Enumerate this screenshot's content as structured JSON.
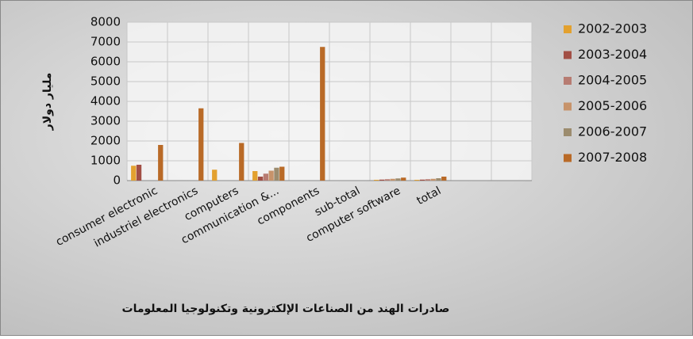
{
  "chart_data": {
    "type": "bar",
    "title": "صادرات الهند من الصناعات الإلكترونية وتكنولوجيا المعلومات",
    "y_label": "مليار دولار",
    "categories": [
      "consumer electronic",
      "industriel electronics",
      "computers",
      "communication &...",
      "components",
      "sub-total",
      "computer software",
      "total",
      null,
      null
    ],
    "series": [
      {
        "name": "2002-2003",
        "color": "#e3a12f",
        "values": [
          750,
          0,
          550,
          480,
          0,
          0,
          40,
          40,
          null,
          null
        ]
      },
      {
        "name": "2003-2004",
        "color": "#a24f45",
        "values": [
          800,
          0,
          0,
          200,
          0,
          0,
          50,
          50,
          null,
          null
        ]
      },
      {
        "name": "2004-2005",
        "color": "#b77c72",
        "values": [
          0,
          0,
          0,
          350,
          0,
          0,
          70,
          70,
          null,
          null
        ]
      },
      {
        "name": "2005-2006",
        "color": "#c7936a",
        "values": [
          0,
          0,
          0,
          500,
          0,
          0,
          90,
          90,
          null,
          null
        ]
      },
      {
        "name": "2006-2007",
        "color": "#9c8c6e",
        "values": [
          0,
          0,
          0,
          650,
          0,
          0,
          110,
          120,
          null,
          null
        ]
      },
      {
        "name": "2007-2008",
        "color": "#b96a27",
        "values": [
          1800,
          3650,
          1900,
          700,
          6750,
          0,
          150,
          200,
          null,
          null
        ]
      }
    ],
    "ylim": [
      0,
      8000
    ],
    "yticks": [
      0,
      1000,
      2000,
      3000,
      4000,
      5000,
      6000,
      7000,
      8000
    ],
    "grid": true,
    "legend": "right"
  }
}
